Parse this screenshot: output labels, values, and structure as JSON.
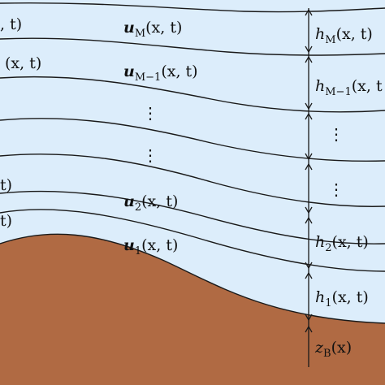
{
  "colors": {
    "water": "#dcedfb",
    "bed": "#b06a43",
    "line": "#1a1a1a"
  },
  "velocity_labels": [
    {
      "id": "uM",
      "base": "u",
      "sub": "M",
      "args": "(x, t)"
    },
    {
      "id": "uM1",
      "base": "u",
      "sub": "M−1",
      "args": "(x, t)"
    },
    {
      "id": "u2",
      "base": "u",
      "sub": "2",
      "args": "(x, t)"
    },
    {
      "id": "u1",
      "base": "u",
      "sub": "1",
      "args": "(x, t)"
    }
  ],
  "height_labels": [
    {
      "id": "hM",
      "base": "h",
      "sub": "M",
      "args": "(x, t)"
    },
    {
      "id": "hM1",
      "base": "h",
      "sub": "M−1",
      "args": "(x, t"
    },
    {
      "id": "h2",
      "base": "h",
      "sub": "2",
      "args": "(x, t)"
    },
    {
      "id": "h1",
      "base": "h",
      "sub": "1",
      "args": "(x, t)"
    }
  ],
  "bed_label": {
    "base": "z",
    "sub": "B",
    "args": "(x)"
  },
  "left_fragments": [
    ", t)",
    "(x, t)",
    "t)",
    "t)"
  ],
  "ellipsis": "⋮"
}
